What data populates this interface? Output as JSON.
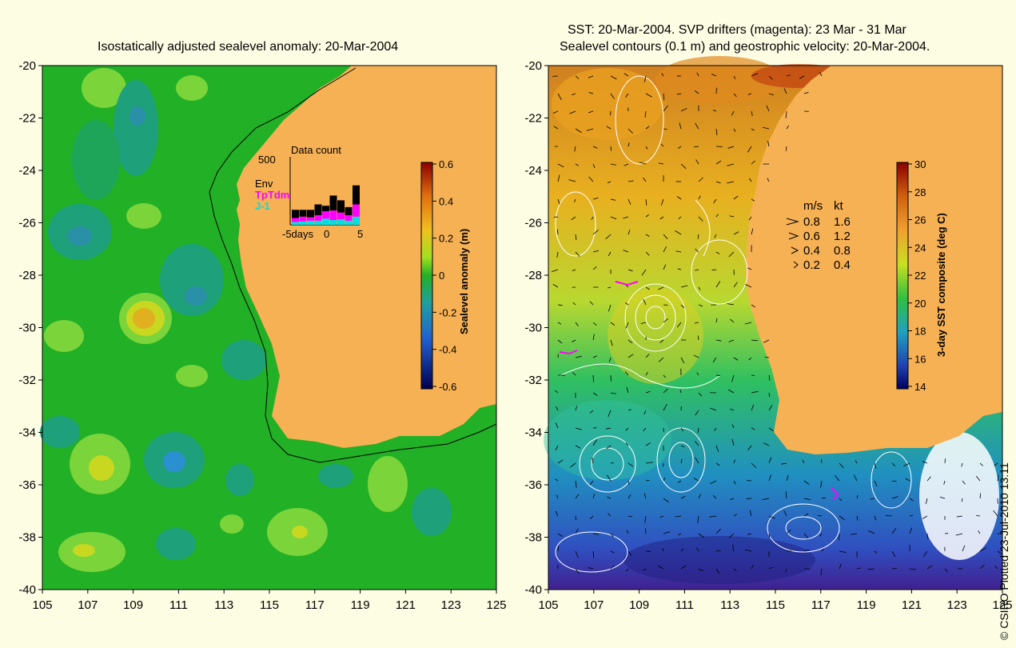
{
  "left_panel": {
    "title": "Isostatically adjusted sealevel anomaly: 20-Mar-2004",
    "x_ticks": [
      "105",
      "107",
      "109",
      "111",
      "113",
      "115",
      "117",
      "119",
      "121",
      "123",
      "125"
    ],
    "y_ticks": [
      "-20",
      "-22",
      "-24",
      "-26",
      "-28",
      "-30",
      "-32",
      "-34",
      "-36",
      "-38",
      "-40"
    ],
    "colorbar": {
      "label": "Sealevel anomaly (m)",
      "ticks": [
        "0.6",
        "0.4",
        "0.2",
        "0",
        "-0.2",
        "-0.4",
        "-0.6"
      ]
    },
    "data_count": {
      "title": "Data count",
      "ymax": "500",
      "legend": [
        {
          "label": "Env",
          "color": "#000000"
        },
        {
          "label": "TpTdm",
          "color": "#ff00ff"
        },
        {
          "label": "J-1",
          "color": "#00e0e0"
        }
      ],
      "x_labels": [
        "-5days",
        "0",
        "5"
      ],
      "bars": [
        {
          "env": 60,
          "tp": 30,
          "j1": 20
        },
        {
          "env": 50,
          "tp": 35,
          "j1": 25
        },
        {
          "env": 55,
          "tp": 25,
          "j1": 30
        },
        {
          "env": 80,
          "tp": 40,
          "j1": 30
        },
        {
          "env": 40,
          "tp": 55,
          "j1": 45
        },
        {
          "env": 110,
          "tp": 70,
          "j1": 35
        },
        {
          "env": 90,
          "tp": 50,
          "j1": 40
        },
        {
          "env": 60,
          "tp": 40,
          "j1": 30
        },
        {
          "env": 140,
          "tp": 90,
          "j1": 60
        }
      ]
    }
  },
  "right_panel": {
    "title_line1": "SST: 20-Mar-2004. SVP drifters (magenta): 23 Mar - 31 Mar",
    "title_line2": "Sealevel contours (0.1 m) and geostrophic velocity: 20-Mar-2004.",
    "x_ticks": [
      "105",
      "107",
      "109",
      "111",
      "113",
      "115",
      "117",
      "119",
      "121",
      "123",
      "125"
    ],
    "y_ticks": [
      "-20",
      "-22",
      "-24",
      "-26",
      "-28",
      "-30",
      "-32",
      "-34",
      "-36",
      "-38",
      "-40"
    ],
    "colorbar": {
      "label": "3-day SST composite (deg C)",
      "ticks": [
        "30",
        "28",
        "26",
        "24",
        "22",
        "20",
        "18",
        "16",
        "14"
      ]
    },
    "velocity_legend": {
      "header_ms": "m/s",
      "header_kt": "kt",
      "rows": [
        {
          "ms": "0.8",
          "kt": "1.6"
        },
        {
          "ms": "0.6",
          "kt": "1.2"
        },
        {
          "ms": "0.4",
          "kt": "0.8"
        },
        {
          "ms": "0.2",
          "kt": "0.4"
        }
      ]
    }
  },
  "credit": "© CSIRO Plotted 23-Jul-2010 13:11",
  "colors": {
    "land": "#f6b155",
    "ocean_left": "#22b027",
    "background": "#fdfde4"
  }
}
